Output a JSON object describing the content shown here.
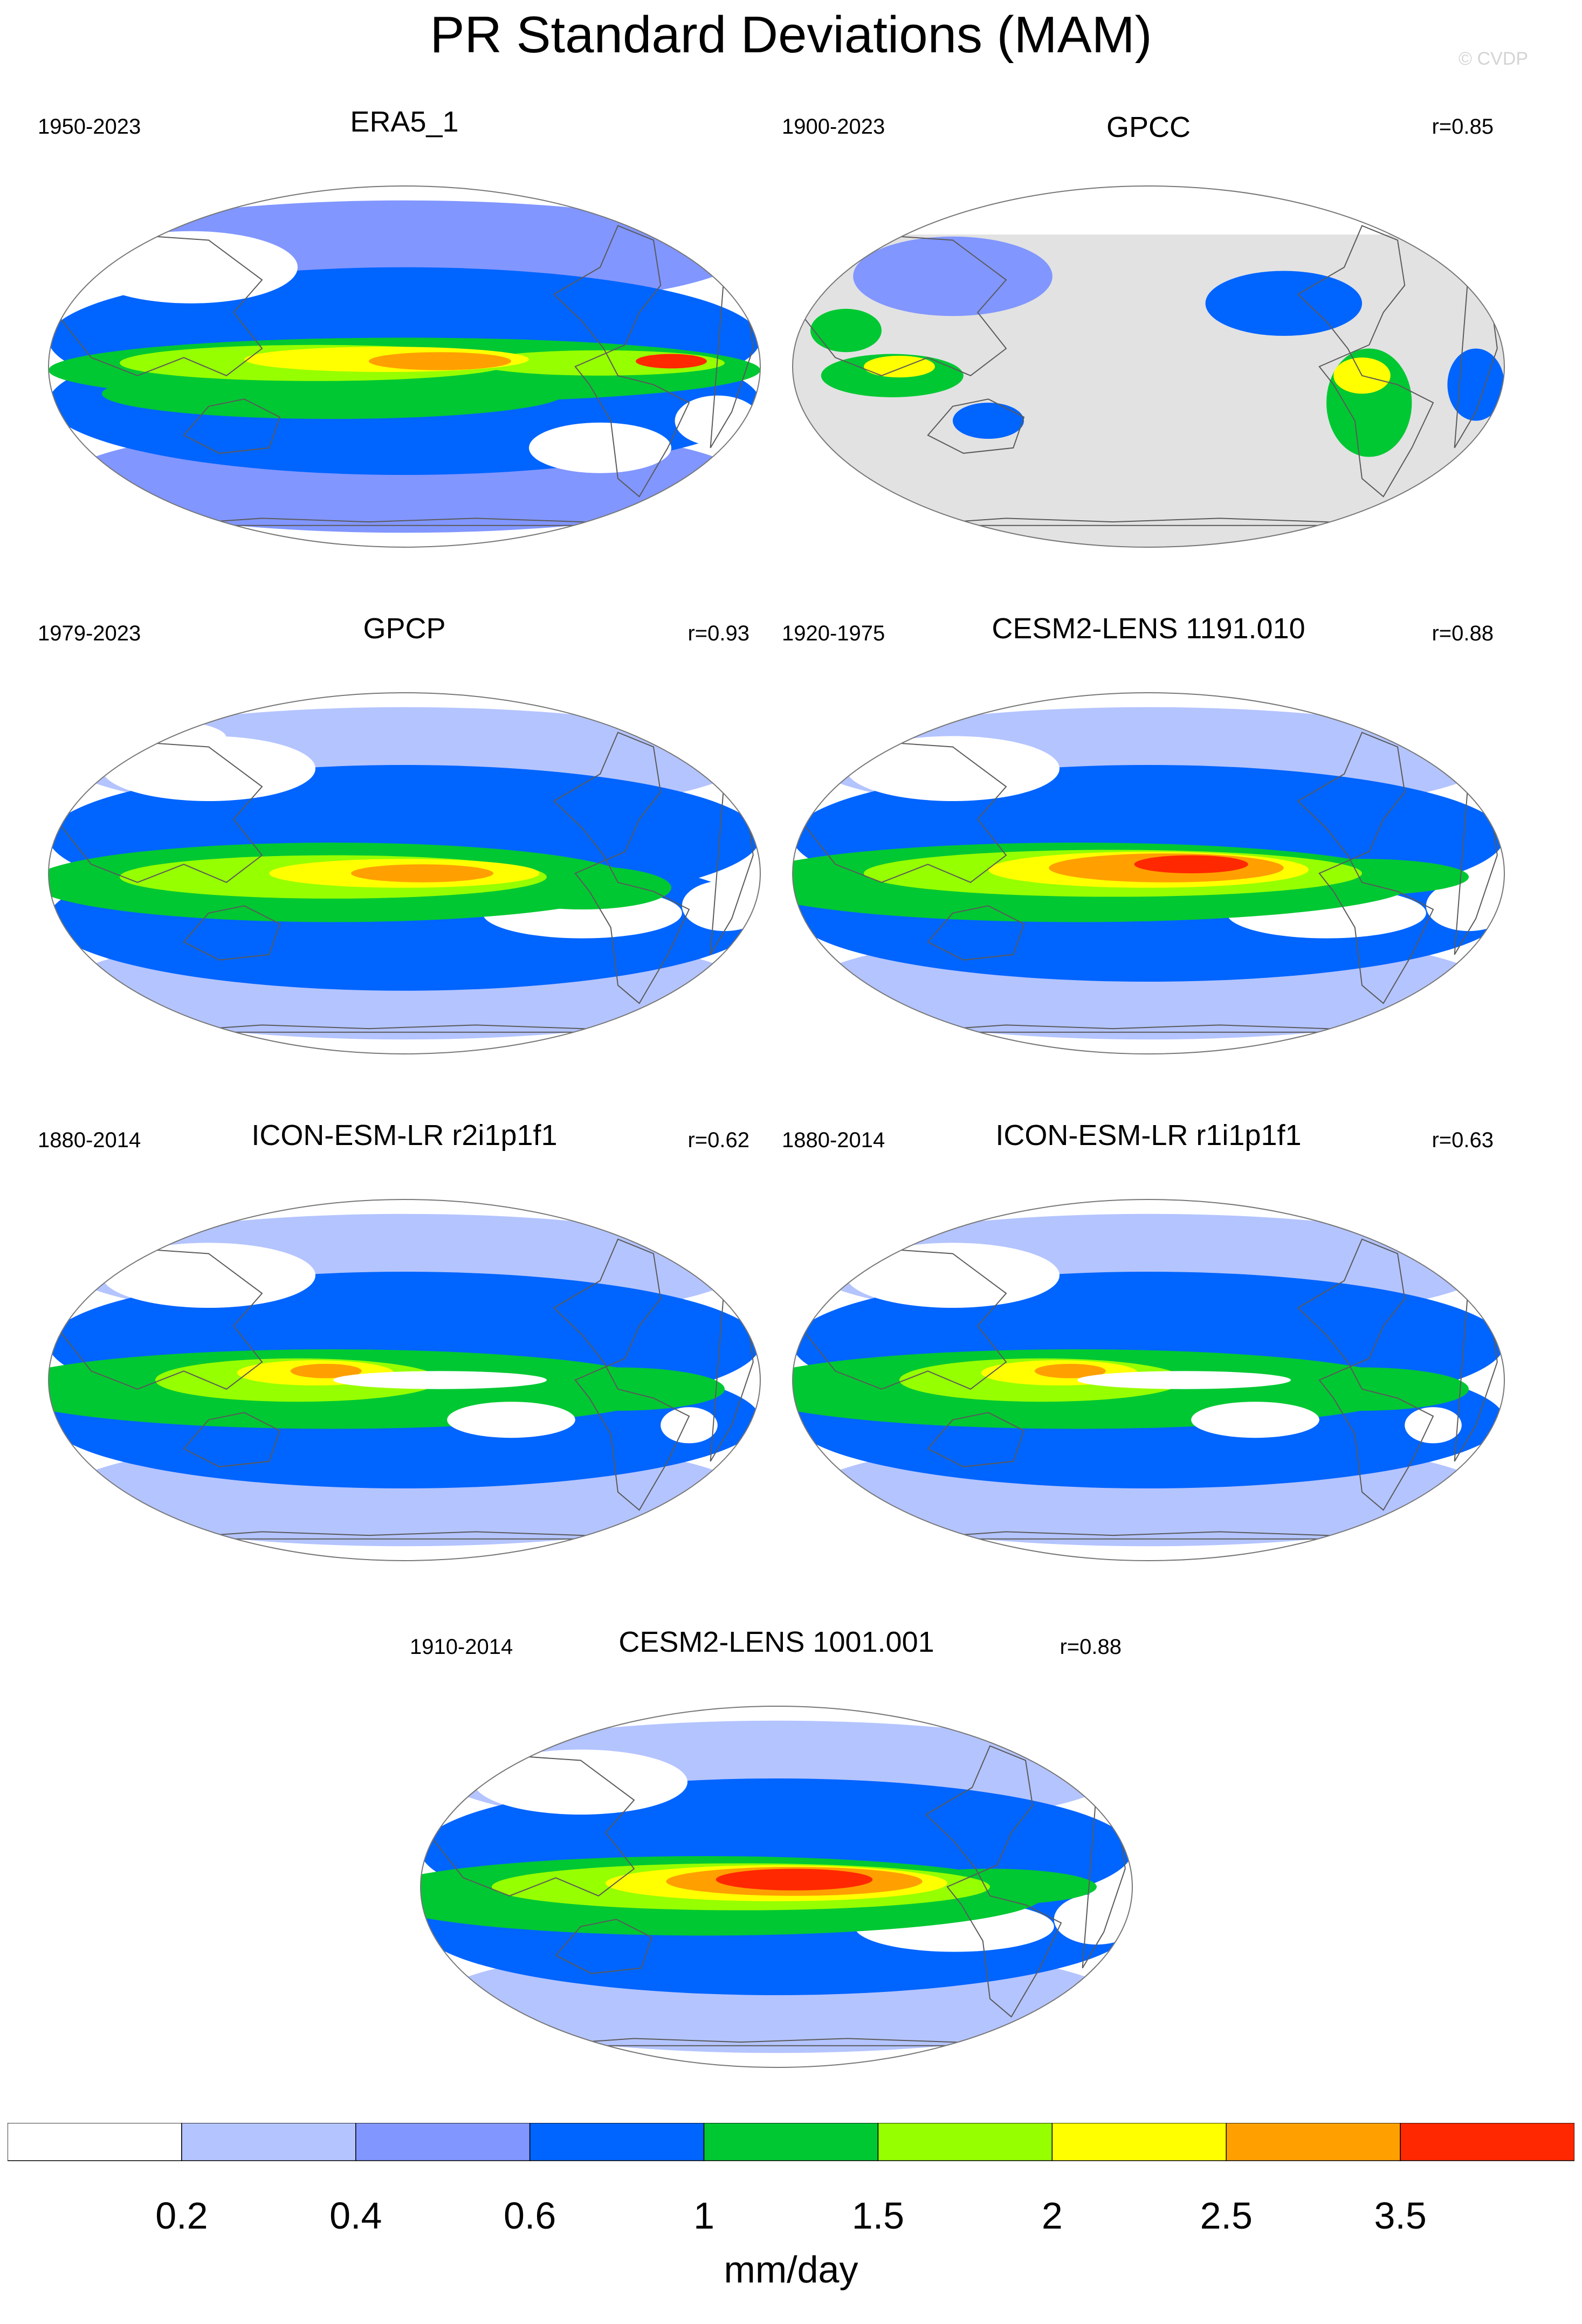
{
  "title": "PR Standard Deviations (MAM)",
  "copyright": "© CVDP",
  "colors": {
    "levels": [
      "#ffffff",
      "#b4c4ff",
      "#8196ff",
      "#0064ff",
      "#00c832",
      "#96ff00",
      "#ffff00",
      "#ffa000",
      "#ff2800"
    ],
    "land": "#e2e2e2",
    "coast": "#5a5a5a"
  },
  "panels": [
    {
      "title": "ERA5_1",
      "years": "1950-2023",
      "corr": "",
      "pattern": "era5"
    },
    {
      "title": "GPCC",
      "years": "1900-2023",
      "corr": "r=0.85",
      "pattern": "gpcc"
    },
    {
      "title": "GPCP",
      "years": "1979-2023",
      "corr": "r=0.93",
      "pattern": "gpcp"
    },
    {
      "title": "CESM2-LENS 1191.010",
      "years": "1920-1975",
      "corr": "r=0.88",
      "pattern": "cesm"
    },
    {
      "title": "ICON-ESM-LR r2i1p1f1",
      "years": "1880-2014",
      "corr": "r=0.62",
      "pattern": "icon"
    },
    {
      "title": "ICON-ESM-LR r1i1p1f1",
      "years": "1880-2014",
      "corr": "r=0.63",
      "pattern": "icon"
    },
    {
      "title": "CESM2-LENS 1001.001",
      "years": "1910-2014",
      "corr": "r=0.88",
      "pattern": "cesm2"
    }
  ],
  "chart_data": {
    "type": "heatmap",
    "colorbar": {
      "ticks": [
        "0.2",
        "0.4",
        "0.6",
        "1",
        "1.5",
        "2",
        "2.5",
        "3.5"
      ],
      "units": "mm/day"
    }
  }
}
